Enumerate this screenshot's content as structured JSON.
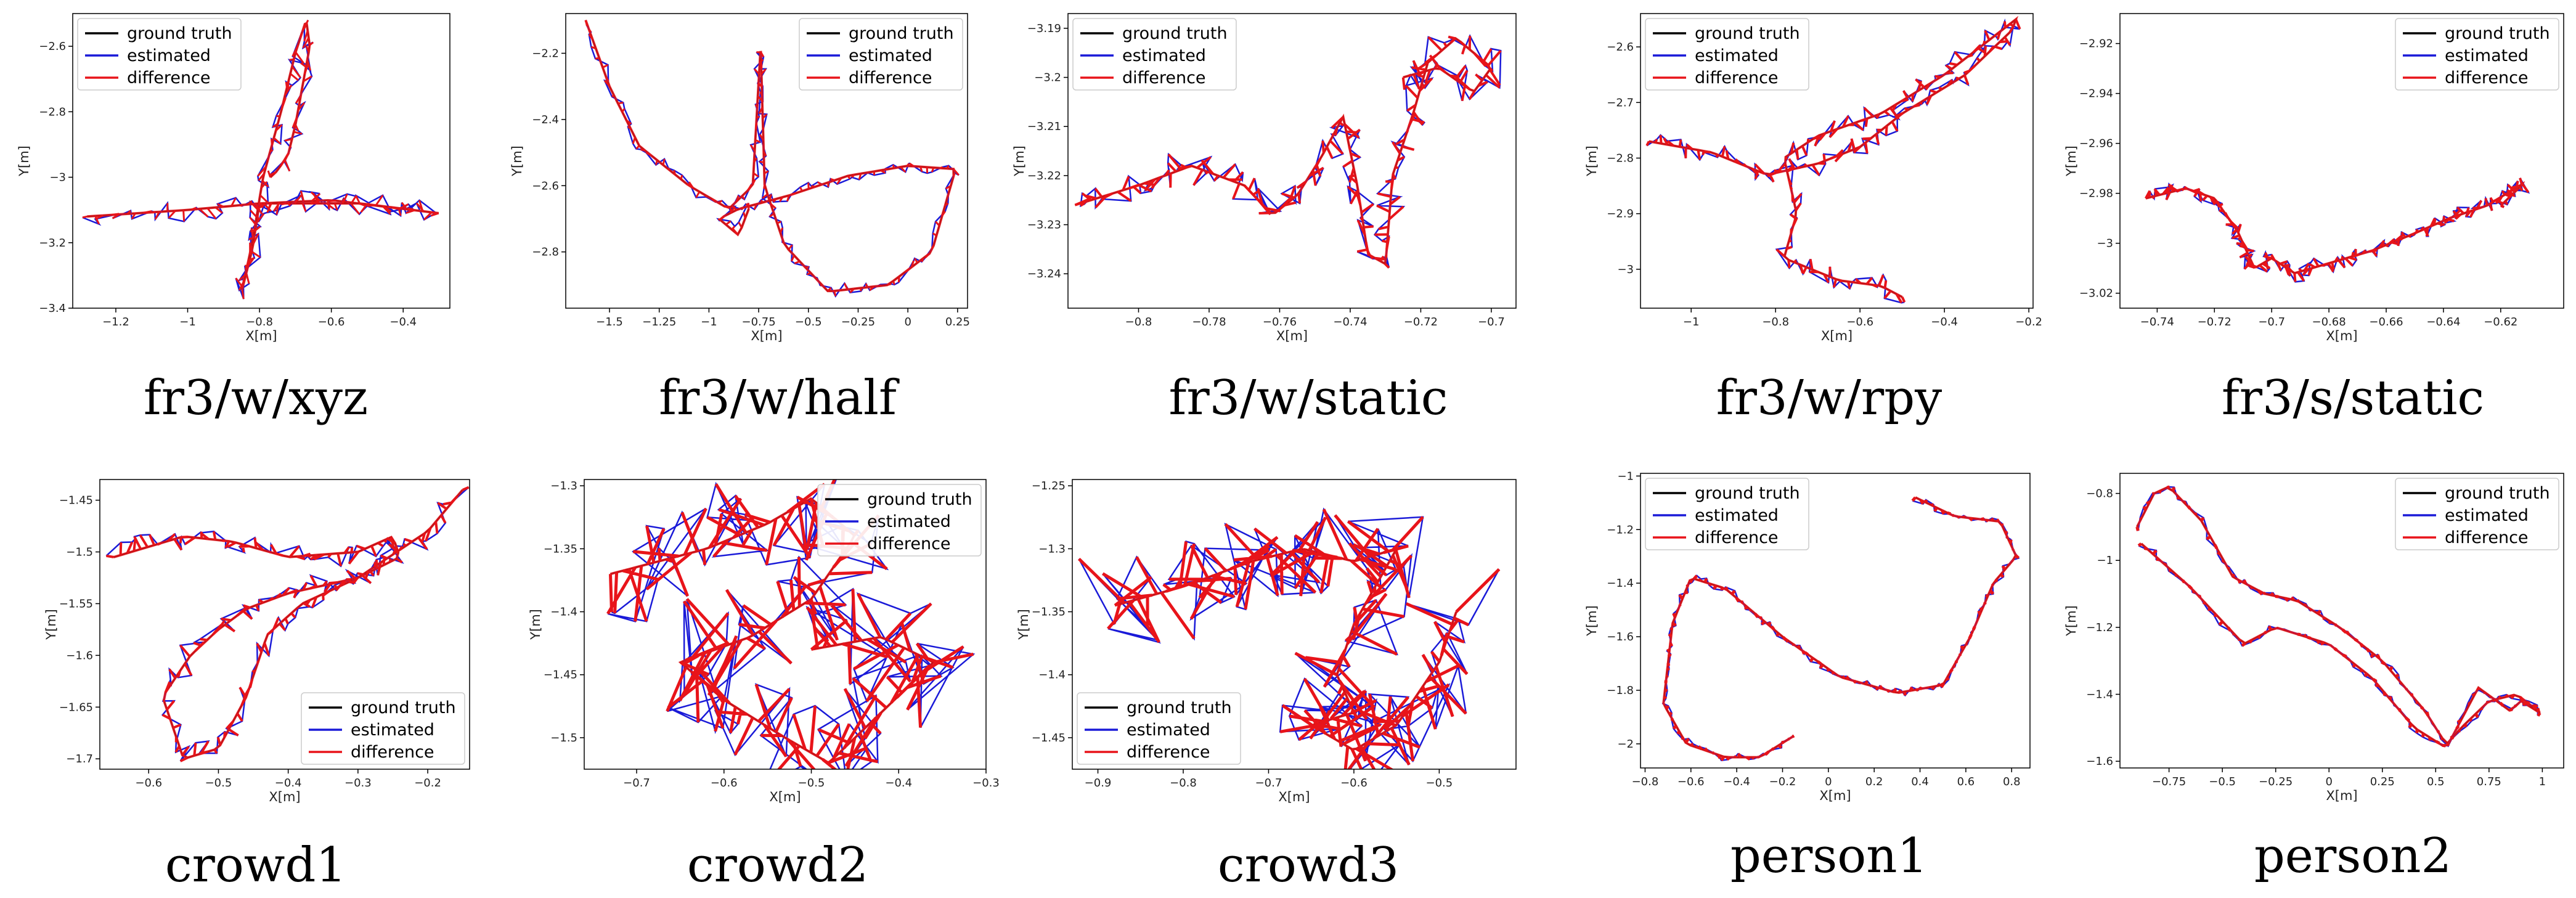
{
  "legend_labels": [
    "ground truth",
    "estimated",
    "difference"
  ],
  "colors": {
    "ground_truth": "#000000",
    "estimated": "#1a1ad8",
    "difference": "#e8141a"
  },
  "chart_data": [
    {
      "type": "line",
      "caption": "fr3/w/xyz",
      "xlabel": "X[m]",
      "ylabel": "Y[m]",
      "xlim": [
        -1.32,
        -0.27
      ],
      "ylim": [
        -3.4,
        -2.5
      ],
      "xticks": [
        -1.2,
        -1.0,
        -0.8,
        -0.6,
        -0.4
      ],
      "yticks": [
        -3.4,
        -3.2,
        -3.0,
        -2.8,
        -2.6
      ],
      "legend": "top-left",
      "gt": [
        [
          -1.28,
          -3.12
        ],
        [
          -1.0,
          -3.1
        ],
        [
          -0.8,
          -3.08
        ],
        [
          -0.6,
          -3.07
        ],
        [
          -0.3,
          -3.11
        ],
        [
          -0.3,
          -3.11
        ],
        [
          -0.52,
          -3.08
        ],
        [
          -0.8,
          -3.08
        ],
        [
          -0.82,
          -3.22
        ],
        [
          -0.85,
          -3.35
        ],
        [
          -0.82,
          -3.2
        ],
        [
          -0.79,
          -3.0
        ],
        [
          -0.74,
          -2.8
        ],
        [
          -0.7,
          -2.62
        ],
        [
          -0.67,
          -2.52
        ],
        [
          -0.66,
          -2.6
        ],
        [
          -0.68,
          -2.72
        ],
        [
          -0.7,
          -2.84
        ],
        [
          -0.72,
          -2.93
        ],
        [
          -0.75,
          -2.98
        ],
        [
          -0.77,
          -3.0
        ]
      ],
      "jitter": 0.035,
      "diff_width": 3
    },
    {
      "type": "line",
      "caption": "fr3/w/half",
      "xlabel": "X[m]",
      "ylabel": "Y[m]",
      "xlim": [
        -1.72,
        0.3
      ],
      "ylim": [
        -2.97,
        -2.08
      ],
      "xticks": [
        -1.5,
        -1.25,
        -1.0,
        -0.75,
        -0.5,
        -0.25,
        0.0,
        0.25
      ],
      "yticks": [
        -2.8,
        -2.6,
        -2.4,
        -2.2
      ],
      "legend": "top-right",
      "gt": [
        [
          -1.62,
          -2.1
        ],
        [
          -1.5,
          -2.3
        ],
        [
          -1.35,
          -2.48
        ],
        [
          -1.1,
          -2.6
        ],
        [
          -0.9,
          -2.67
        ],
        [
          -0.78,
          -2.6
        ],
        [
          -0.74,
          -2.18
        ],
        [
          -0.72,
          -2.6
        ],
        [
          -0.62,
          -2.78
        ],
        [
          -0.4,
          -2.92
        ],
        [
          -0.1,
          -2.9
        ],
        [
          0.12,
          -2.8
        ],
        [
          0.24,
          -2.55
        ],
        [
          0.0,
          -2.54
        ],
        [
          -0.3,
          -2.57
        ],
        [
          -0.6,
          -2.63
        ],
        [
          -0.85,
          -2.67
        ],
        [
          -0.95,
          -2.7
        ],
        [
          -0.85,
          -2.75
        ],
        [
          -0.8,
          -2.67
        ]
      ],
      "jitter": 0.02,
      "diff_width": 3
    },
    {
      "type": "line",
      "caption": "fr3/w/static",
      "xlabel": "X[m]",
      "ylabel": "Y[m]",
      "xlim": [
        -0.82,
        -0.693
      ],
      "ylim": [
        -3.247,
        -3.187
      ],
      "xticks": [
        -0.8,
        -0.78,
        -0.76,
        -0.74,
        -0.72,
        -0.7
      ],
      "yticks": [
        -3.24,
        -3.23,
        -3.22,
        -3.21,
        -3.2,
        -3.19
      ],
      "legend": "top-left",
      "gt": [
        [
          -0.818,
          -3.226
        ],
        [
          -0.8,
          -3.222
        ],
        [
          -0.785,
          -3.218
        ],
        [
          -0.77,
          -3.222
        ],
        [
          -0.762,
          -3.228
        ],
        [
          -0.755,
          -3.224
        ],
        [
          -0.748,
          -3.216
        ],
        [
          -0.742,
          -3.208
        ],
        [
          -0.738,
          -3.222
        ],
        [
          -0.735,
          -3.236
        ],
        [
          -0.73,
          -3.238
        ],
        [
          -0.728,
          -3.22
        ],
        [
          -0.722,
          -3.207
        ],
        [
          -0.718,
          -3.197
        ],
        [
          -0.71,
          -3.192
        ],
        [
          -0.7,
          -3.198
        ],
        [
          -0.705,
          -3.203
        ],
        [
          -0.715,
          -3.198
        ],
        [
          -0.725,
          -3.2
        ]
      ],
      "jitter": 0.0032,
      "diff_width": 4
    },
    {
      "type": "line",
      "caption": "fr3/w/rpy",
      "xlabel": "X[m]",
      "ylabel": "Y[m]",
      "xlim": [
        -1.12,
        -0.19
      ],
      "ylim": [
        -3.07,
        -2.54
      ],
      "xticks": [
        -1.0,
        -0.8,
        -0.6,
        -0.4,
        -0.2
      ],
      "yticks": [
        -3.0,
        -2.9,
        -2.8,
        -2.7,
        -2.6
      ],
      "legend": "top-left",
      "gt": [
        [
          -1.1,
          -2.77
        ],
        [
          -0.95,
          -2.79
        ],
        [
          -0.82,
          -2.83
        ],
        [
          -0.7,
          -2.81
        ],
        [
          -0.6,
          -2.78
        ],
        [
          -0.5,
          -2.72
        ],
        [
          -0.35,
          -2.65
        ],
        [
          -0.24,
          -2.57
        ],
        [
          -0.23,
          -2.55
        ],
        [
          -0.4,
          -2.65
        ],
        [
          -0.55,
          -2.72
        ],
        [
          -0.7,
          -2.76
        ],
        [
          -0.78,
          -2.8
        ],
        [
          -0.75,
          -2.9
        ],
        [
          -0.78,
          -2.98
        ],
        [
          -0.65,
          -3.02
        ],
        [
          -0.55,
          -3.03
        ],
        [
          -0.5,
          -3.05
        ]
      ],
      "jitter": 0.02,
      "diff_width": 4
    },
    {
      "type": "line",
      "caption": "fr3/s/static",
      "xlabel": "X[m]",
      "ylabel": "Y[m]",
      "xlim": [
        -0.753,
        -0.598
      ],
      "ylim": [
        -3.026,
        -2.908
      ],
      "xticks": [
        -0.74,
        -0.72,
        -0.7,
        -0.68,
        -0.66,
        -0.64,
        -0.62
      ],
      "yticks": [
        -3.02,
        -3.0,
        -2.98,
        -2.96,
        -2.94,
        -2.92
      ],
      "legend": "top-right",
      "gt": [
        [
          -0.744,
          -2.982
        ],
        [
          -0.73,
          -2.978
        ],
        [
          -0.72,
          -2.982
        ],
        [
          -0.712,
          -2.995
        ],
        [
          -0.706,
          -3.01
        ],
        [
          -0.7,
          -3.006
        ],
        [
          -0.692,
          -3.012
        ],
        [
          -0.68,
          -3.008
        ],
        [
          -0.665,
          -3.003
        ],
        [
          -0.65,
          -2.996
        ],
        [
          -0.638,
          -2.99
        ],
        [
          -0.625,
          -2.985
        ],
        [
          -0.612,
          -2.976
        ],
        [
          -0.62,
          -2.985
        ]
      ],
      "jitter": 0.0035,
      "diff_width": 4
    },
    {
      "type": "line",
      "caption": "crowd1",
      "xlabel": "X[m]",
      "ylabel": "Y[m]",
      "xlim": [
        -0.67,
        -0.14
      ],
      "ylim": [
        -1.71,
        -1.43
      ],
      "xticks": [
        -0.6,
        -0.5,
        -0.4,
        -0.3,
        -0.2
      ],
      "yticks": [
        -1.7,
        -1.65,
        -1.6,
        -1.55,
        -1.5,
        -1.45
      ],
      "legend": "bottom-right",
      "gt": [
        [
          -0.65,
          -1.505
        ],
        [
          -0.55,
          -1.485
        ],
        [
          -0.48,
          -1.49
        ],
        [
          -0.4,
          -1.505
        ],
        [
          -0.3,
          -1.5
        ],
        [
          -0.25,
          -1.485
        ],
        [
          -0.24,
          -1.505
        ],
        [
          -0.3,
          -1.525
        ],
        [
          -0.4,
          -1.54
        ],
        [
          -0.46,
          -1.555
        ],
        [
          -0.5,
          -1.575
        ],
        [
          -0.54,
          -1.6
        ],
        [
          -0.58,
          -1.64
        ],
        [
          -0.55,
          -1.7
        ],
        [
          -0.5,
          -1.69
        ],
        [
          -0.46,
          -1.64
        ],
        [
          -0.43,
          -1.58
        ],
        [
          -0.38,
          -1.55
        ],
        [
          -0.3,
          -1.525
        ],
        [
          -0.2,
          -1.48
        ],
        [
          -0.15,
          -1.44
        ]
      ],
      "jitter": 0.013,
      "diff_width": 4
    },
    {
      "type": "line",
      "caption": "crowd2",
      "xlabel": "X[m]",
      "ylabel": "Y[m]",
      "xlim": [
        -0.76,
        -0.3
      ],
      "ylim": [
        -1.525,
        -1.295
      ],
      "xticks": [
        -0.7,
        -0.6,
        -0.5,
        -0.4,
        -0.3
      ],
      "yticks": [
        -1.5,
        -1.45,
        -1.4,
        -1.35,
        -1.3
      ],
      "legend": "top-right",
      "gt": [
        [
          -0.73,
          -1.37
        ],
        [
          -0.62,
          -1.35
        ],
        [
          -0.55,
          -1.33
        ],
        [
          -0.5,
          -1.31
        ],
        [
          -0.45,
          -1.34
        ],
        [
          -0.5,
          -1.39
        ],
        [
          -0.57,
          -1.42
        ],
        [
          -0.65,
          -1.44
        ],
        [
          -0.6,
          -1.47
        ],
        [
          -0.53,
          -1.5
        ],
        [
          -0.48,
          -1.52
        ],
        [
          -0.42,
          -1.48
        ],
        [
          -0.36,
          -1.44
        ],
        [
          -0.42,
          -1.42
        ],
        [
          -0.5,
          -1.43
        ]
      ],
      "jitter": 0.045,
      "diff_width": 5
    },
    {
      "type": "line",
      "caption": "crowd3",
      "xlabel": "X[m]",
      "ylabel": "Y[m]",
      "xlim": [
        -0.93,
        -0.41
      ],
      "ylim": [
        -1.475,
        -1.245
      ],
      "xticks": [
        -0.9,
        -0.8,
        -0.7,
        -0.6,
        -0.5
      ],
      "yticks": [
        -1.45,
        -1.4,
        -1.35,
        -1.3,
        -1.25
      ],
      "legend": "bottom-left",
      "gt": [
        [
          -0.88,
          -1.345
        ],
        [
          -0.8,
          -1.33
        ],
        [
          -0.72,
          -1.31
        ],
        [
          -0.66,
          -1.3
        ],
        [
          -0.6,
          -1.31
        ],
        [
          -0.55,
          -1.3
        ],
        [
          -0.6,
          -1.36
        ],
        [
          -0.62,
          -1.4
        ],
        [
          -0.6,
          -1.43
        ],
        [
          -0.65,
          -1.44
        ],
        [
          -0.6,
          -1.46
        ],
        [
          -0.55,
          -1.44
        ],
        [
          -0.5,
          -1.39
        ],
        [
          -0.48,
          -1.35
        ]
      ],
      "jitter": 0.04,
      "diff_width": 5
    },
    {
      "type": "line",
      "caption": "person1",
      "xlabel": "X[m]",
      "ylabel": "Y[m]",
      "xlim": [
        -0.82,
        0.88
      ],
      "ylim": [
        -2.09,
        -0.99
      ],
      "xticks": [
        -0.8,
        -0.6,
        -0.4,
        -0.2,
        0.0,
        0.2,
        0.4,
        0.6,
        0.8
      ],
      "yticks": [
        -2.0,
        -1.8,
        -1.6,
        -1.4,
        -1.2,
        -1.0
      ],
      "legend": "top-left",
      "gt": [
        [
          -0.15,
          -1.97
        ],
        [
          -0.3,
          -2.05
        ],
        [
          -0.45,
          -2.05
        ],
        [
          -0.62,
          -2.0
        ],
        [
          -0.72,
          -1.85
        ],
        [
          -0.68,
          -1.55
        ],
        [
          -0.6,
          -1.38
        ],
        [
          -0.45,
          -1.42
        ],
        [
          -0.2,
          -1.6
        ],
        [
          0.05,
          -1.75
        ],
        [
          0.3,
          -1.81
        ],
        [
          0.5,
          -1.78
        ],
        [
          0.62,
          -1.6
        ],
        [
          0.72,
          -1.4
        ],
        [
          0.82,
          -1.3
        ],
        [
          0.75,
          -1.17
        ],
        [
          0.55,
          -1.15
        ],
        [
          0.38,
          -1.08
        ]
      ],
      "jitter": 0.015,
      "diff_width": 5
    },
    {
      "type": "line",
      "caption": "person2",
      "xlabel": "X[m]",
      "ylabel": "Y[m]",
      "xlim": [
        -0.98,
        1.1
      ],
      "ylim": [
        -1.62,
        -0.74
      ],
      "xticks": [
        -0.75,
        -0.5,
        -0.25,
        0.0,
        0.25,
        0.5,
        0.75,
        1.0
      ],
      "yticks": [
        -1.6,
        -1.4,
        -1.2,
        -1.0,
        -0.8
      ],
      "legend": "top-right",
      "gt": [
        [
          -0.9,
          -0.9
        ],
        [
          -0.82,
          -0.8
        ],
        [
          -0.75,
          -0.78
        ],
        [
          -0.6,
          -0.88
        ],
        [
          -0.45,
          -1.05
        ],
        [
          -0.3,
          -1.1
        ],
        [
          -0.15,
          -1.12
        ],
        [
          0.05,
          -1.2
        ],
        [
          0.25,
          -1.3
        ],
        [
          0.45,
          -1.45
        ],
        [
          0.55,
          -1.55
        ],
        [
          0.62,
          -1.5
        ],
        [
          0.75,
          -1.42
        ],
        [
          0.88,
          -1.4
        ],
        [
          1.0,
          -1.46
        ],
        [
          0.9,
          -1.42
        ],
        [
          0.85,
          -1.45
        ],
        [
          0.7,
          -1.38
        ],
        [
          0.55,
          -1.56
        ],
        [
          0.4,
          -1.5
        ],
        [
          0.2,
          -1.35
        ],
        [
          0.0,
          -1.25
        ],
        [
          -0.25,
          -1.2
        ],
        [
          -0.4,
          -1.25
        ],
        [
          -0.65,
          -1.08
        ],
        [
          -0.88,
          -0.95
        ]
      ],
      "jitter": 0.012,
      "diff_width": 5
    }
  ]
}
